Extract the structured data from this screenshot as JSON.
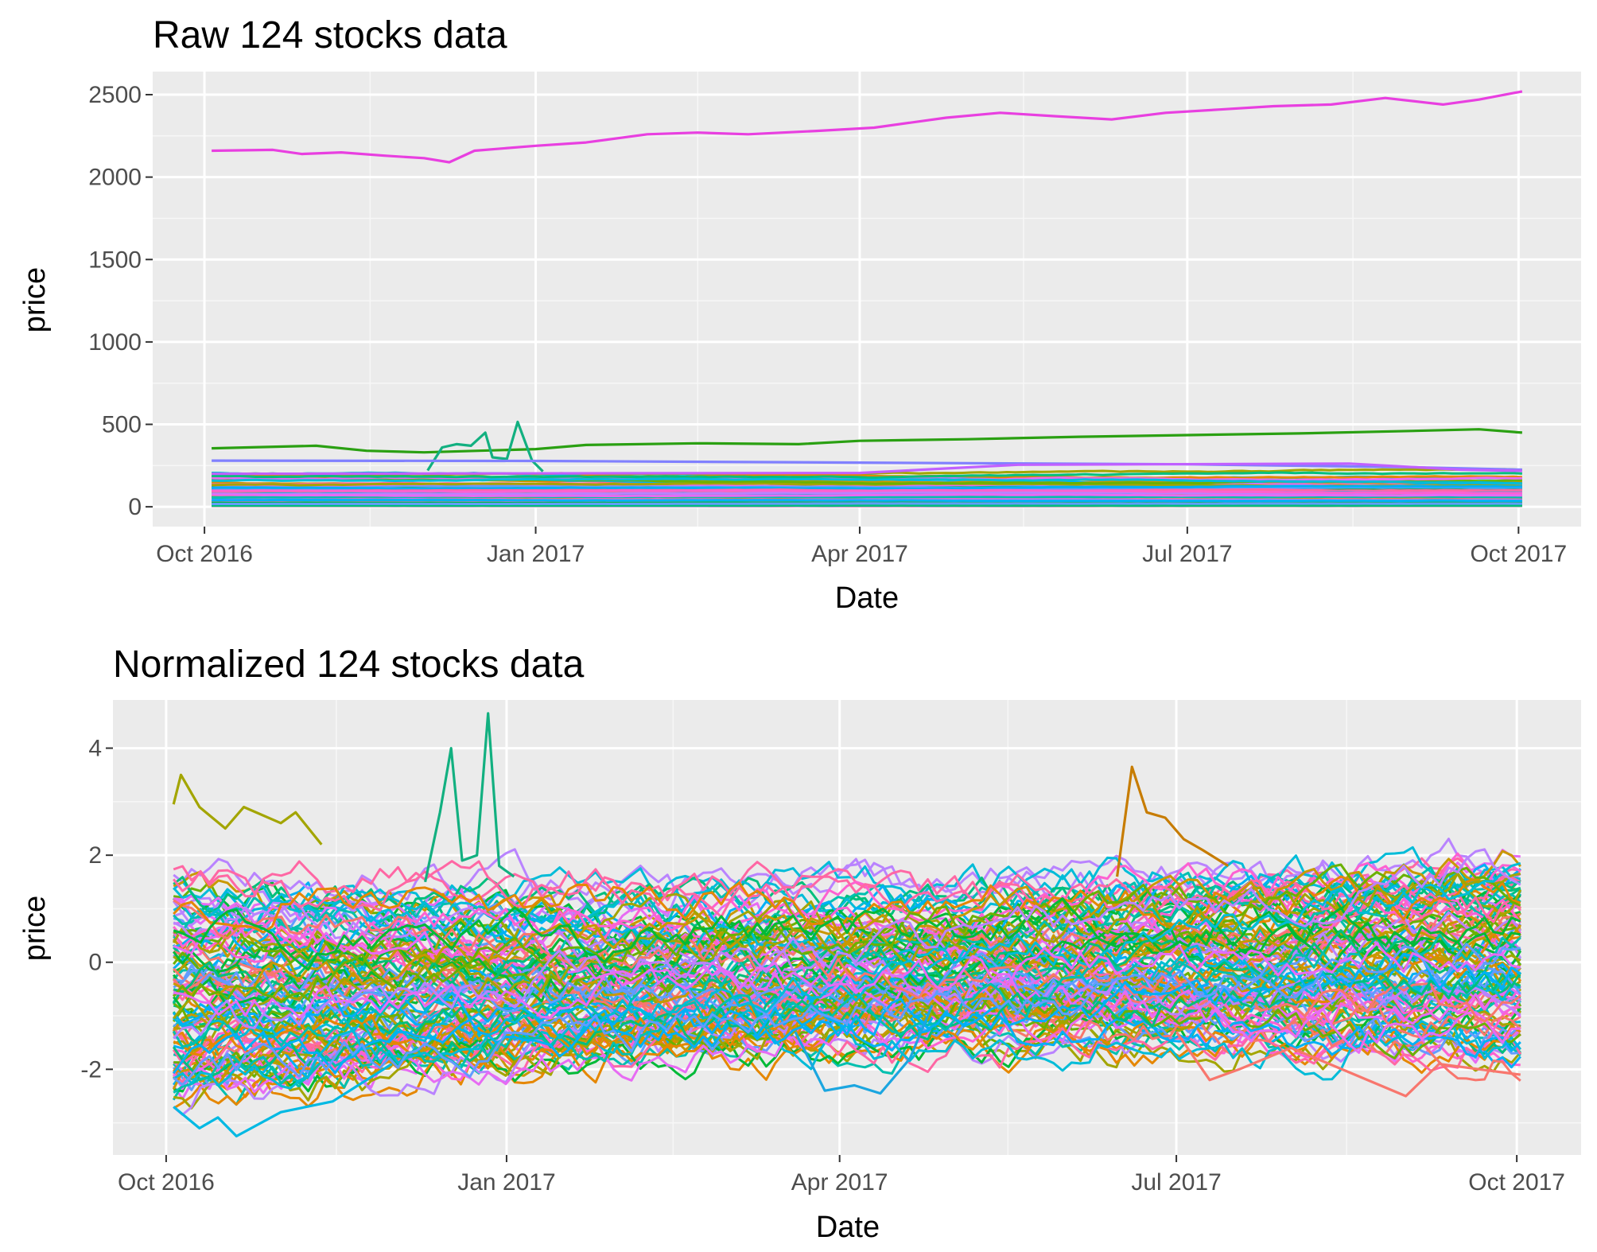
{
  "chart_data": [
    {
      "type": "line",
      "title": "Raw 124 stocks data",
      "xlabel": "Date",
      "ylabel": "price",
      "x_range": [
        "2016-10-03",
        "2017-10-02"
      ],
      "ylim": [
        -120,
        2640
      ],
      "x_ticks": [
        {
          "date": "2016-10-01",
          "label": "Oct 2016"
        },
        {
          "date": "2017-01-01",
          "label": "Jan 2017"
        },
        {
          "date": "2017-04-01",
          "label": "Apr 2017"
        },
        {
          "date": "2017-07-01",
          "label": "Jul 2017"
        },
        {
          "date": "2017-10-01",
          "label": "Oct 2017"
        }
      ],
      "y_ticks": [
        0,
        500,
        1000,
        1500,
        2000,
        2500
      ],
      "grid": true,
      "series_count": 124,
      "highlighted_series": [
        {
          "color": "#E83FE0",
          "points": [
            [
              "2016-10-03",
              2160
            ],
            [
              "2016-10-20",
              2165
            ],
            [
              "2016-10-28",
              2140
            ],
            [
              "2016-11-08",
              2150
            ],
            [
              "2016-11-20",
              2130
            ],
            [
              "2016-12-01",
              2115
            ],
            [
              "2016-12-08",
              2090
            ],
            [
              "2016-12-15",
              2160
            ],
            [
              "2017-01-01",
              2190
            ],
            [
              "2017-01-15",
              2210
            ],
            [
              "2017-02-01",
              2260
            ],
            [
              "2017-02-15",
              2270
            ],
            [
              "2017-03-01",
              2260
            ],
            [
              "2017-03-20",
              2280
            ],
            [
              "2017-04-05",
              2300
            ],
            [
              "2017-04-25",
              2360
            ],
            [
              "2017-05-10",
              2390
            ],
            [
              "2017-05-25",
              2370
            ],
            [
              "2017-06-10",
              2350
            ],
            [
              "2017-06-25",
              2390
            ],
            [
              "2017-07-10",
              2410
            ],
            [
              "2017-07-25",
              2430
            ],
            [
              "2017-08-10",
              2440
            ],
            [
              "2017-08-25",
              2480
            ],
            [
              "2017-09-10",
              2440
            ],
            [
              "2017-09-20",
              2470
            ],
            [
              "2017-10-02",
              2520
            ]
          ]
        },
        {
          "color": "#2AA012",
          "points": [
            [
              "2016-10-03",
              355
            ],
            [
              "2016-11-01",
              370
            ],
            [
              "2016-11-15",
              340
            ],
            [
              "2016-12-01",
              330
            ],
            [
              "2017-01-01",
              350
            ],
            [
              "2017-01-15",
              375
            ],
            [
              "2017-02-15",
              385
            ],
            [
              "2017-03-15",
              380
            ],
            [
              "2017-04-01",
              400
            ],
            [
              "2017-05-01",
              410
            ],
            [
              "2017-06-01",
              425
            ],
            [
              "2017-07-01",
              435
            ],
            [
              "2017-08-01",
              445
            ],
            [
              "2017-09-01",
              460
            ],
            [
              "2017-09-20",
              470
            ],
            [
              "2017-10-02",
              450
            ]
          ]
        },
        {
          "color": "#12B080",
          "points": [
            [
              "2016-12-02",
              220
            ],
            [
              "2016-12-06",
              360
            ],
            [
              "2016-12-10",
              380
            ],
            [
              "2016-12-14",
              370
            ],
            [
              "2016-12-18",
              450
            ],
            [
              "2016-12-20",
              300
            ],
            [
              "2016-12-24",
              290
            ],
            [
              "2016-12-27",
              515
            ],
            [
              "2016-12-31",
              280
            ],
            [
              "2017-01-03",
              215
            ]
          ]
        },
        {
          "color": "#8080FF",
          "points": [
            [
              "2016-10-03",
              280
            ],
            [
              "2017-01-01",
              278
            ],
            [
              "2017-04-01",
              268
            ],
            [
              "2017-07-01",
              258
            ],
            [
              "2017-09-01",
              240
            ],
            [
              "2017-10-02",
              225
            ]
          ]
        },
        {
          "color": "#C060FF",
          "points": [
            [
              "2016-10-03",
              200
            ],
            [
              "2017-04-01",
              205
            ],
            [
              "2017-05-15",
              255
            ],
            [
              "2017-08-15",
              262
            ],
            [
              "2017-09-15",
              225
            ],
            [
              "2017-10-02",
              218
            ]
          ]
        }
      ]
    },
    {
      "type": "line",
      "title": "Normalized 124 stocks data",
      "xlabel": "Date",
      "ylabel": "price",
      "x_range": [
        "2016-10-03",
        "2017-10-02"
      ],
      "ylim": [
        -3.6,
        4.9
      ],
      "x_ticks": [
        {
          "date": "2016-10-01",
          "label": "Oct 2016"
        },
        {
          "date": "2017-01-01",
          "label": "Jan 2017"
        },
        {
          "date": "2017-04-01",
          "label": "Apr 2017"
        },
        {
          "date": "2017-07-01",
          "label": "Jul 2017"
        },
        {
          "date": "2017-10-01",
          "label": "Oct 2017"
        }
      ],
      "y_ticks": [
        -2,
        0,
        2,
        4
      ],
      "grid": true,
      "series_count": 124,
      "highlighted_series": [
        {
          "color": "#12B080",
          "points": [
            [
              "2016-12-10",
              1.5
            ],
            [
              "2016-12-14",
              2.8
            ],
            [
              "2016-12-17",
              4.0
            ],
            [
              "2016-12-20",
              1.9
            ],
            [
              "2016-12-24",
              2.0
            ],
            [
              "2016-12-27",
              4.65
            ],
            [
              "2016-12-30",
              1.8
            ],
            [
              "2017-01-03",
              1.6
            ]
          ]
        },
        {
          "color": "#C77C00",
          "points": [
            [
              "2017-06-15",
              1.6
            ],
            [
              "2017-06-19",
              3.65
            ],
            [
              "2017-06-23",
              2.8
            ],
            [
              "2017-06-28",
              2.7
            ],
            [
              "2017-07-03",
              2.3
            ],
            [
              "2017-07-08",
              2.1
            ],
            [
              "2017-07-15",
              1.8
            ]
          ]
        },
        {
          "color": "#A3A500",
          "points": [
            [
              "2016-10-03",
              2.95
            ],
            [
              "2016-10-05",
              3.5
            ],
            [
              "2016-10-10",
              2.9
            ],
            [
              "2016-10-17",
              2.5
            ],
            [
              "2016-10-22",
              2.9
            ],
            [
              "2016-11-01",
              2.6
            ],
            [
              "2016-11-05",
              2.8
            ],
            [
              "2016-11-12",
              2.2
            ]
          ]
        },
        {
          "color": "#1BA6E0",
          "points": [
            [
              "2017-03-20",
              -1.3
            ],
            [
              "2017-03-28",
              -2.4
            ],
            [
              "2017-04-05",
              -2.3
            ],
            [
              "2017-04-12",
              -2.45
            ],
            [
              "2017-04-20",
              -1.8
            ],
            [
              "2017-04-26",
              -0.8
            ]
          ]
        },
        {
          "color": "#00B9E3",
          "points": [
            [
              "2016-10-03",
              -2.7
            ],
            [
              "2016-10-10",
              -3.1
            ],
            [
              "2016-10-15",
              -2.9
            ],
            [
              "2016-10-20",
              -3.25
            ],
            [
              "2016-11-01",
              -2.8
            ],
            [
              "2016-11-15",
              -2.6
            ],
            [
              "2016-12-01",
              -1.9
            ]
          ]
        },
        {
          "color": "#F8766D",
          "points": [
            [
              "2017-07-01",
              -1.3
            ],
            [
              "2017-07-10",
              -2.2
            ],
            [
              "2017-07-18",
              -2.0
            ],
            [
              "2017-08-01",
              -1.6
            ],
            [
              "2017-09-01",
              -2.5
            ],
            [
              "2017-09-10",
              -1.9
            ],
            [
              "2017-10-02",
              -2.1
            ]
          ]
        }
      ]
    }
  ]
}
